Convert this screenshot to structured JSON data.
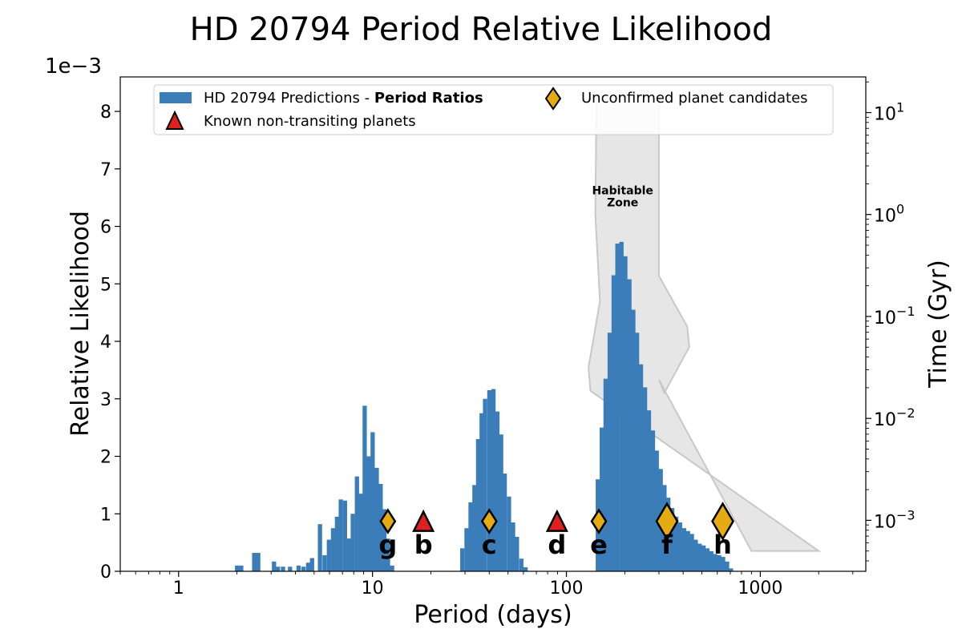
{
  "chart_data": {
    "type": "bar",
    "title": "HD 20794 Period Relative Likelihood",
    "xlabel": "Period (days)",
    "ylabel": "Relative Likelihood",
    "y_scale_label": "1e−3",
    "y2label": "Time (Gyr)",
    "xscale": "log",
    "xlim": [
      0.5,
      3500
    ],
    "ylim": [
      0,
      8.6
    ],
    "y2lim_log10": [
      -3.5,
      1.35
    ],
    "x_ticks": [
      {
        "value": 1,
        "label": "1"
      },
      {
        "value": 10,
        "label": "10"
      },
      {
        "value": 100,
        "label": "100"
      },
      {
        "value": 1000,
        "label": "1000"
      }
    ],
    "y_ticks": [
      {
        "value": 0,
        "label": "0"
      },
      {
        "value": 1,
        "label": "1"
      },
      {
        "value": 2,
        "label": "2"
      },
      {
        "value": 3,
        "label": "3"
      },
      {
        "value": 4,
        "label": "4"
      },
      {
        "value": 5,
        "label": "5"
      },
      {
        "value": 6,
        "label": "6"
      },
      {
        "value": 7,
        "label": "7"
      },
      {
        "value": 8,
        "label": "8"
      }
    ],
    "y2_ticks": [
      {
        "value": 1,
        "base": "10",
        "exp": "1"
      },
      {
        "value": 0,
        "base": "10",
        "exp": "0"
      },
      {
        "value": -1,
        "base": "10",
        "exp": "−1"
      },
      {
        "value": -2,
        "base": "10",
        "exp": "−2"
      },
      {
        "value": -3,
        "base": "10",
        "exp": "−3"
      }
    ],
    "histogram": {
      "name": "HD 20794 Predictions - Period Ratios",
      "color": "#3a7db8",
      "log_bin_width": 0.0207,
      "bins": [
        [
          2.0,
          0.1
        ],
        [
          2.1,
          0.1
        ],
        [
          2.45,
          0.32
        ],
        [
          2.57,
          0.32
        ],
        [
          3.1,
          0.17
        ],
        [
          3.25,
          0.08
        ],
        [
          3.45,
          0.08
        ],
        [
          3.75,
          0.08
        ],
        [
          4.15,
          0.1
        ],
        [
          4.4,
          0.08
        ],
        [
          4.65,
          0.15
        ],
        [
          4.87,
          0.23
        ],
        [
          5.35,
          0.82
        ],
        [
          5.65,
          0.28
        ],
        [
          5.95,
          0.55
        ],
        [
          6.25,
          0.75
        ],
        [
          6.55,
          0.95
        ],
        [
          6.85,
          1.25
        ],
        [
          7.2,
          1.23
        ],
        [
          7.55,
          0.57
        ],
        [
          7.9,
          1.0
        ],
        [
          8.3,
          1.65
        ],
        [
          8.7,
          1.35
        ],
        [
          9.1,
          2.88
        ],
        [
          9.55,
          2.0
        ],
        [
          10.0,
          2.42
        ],
        [
          10.5,
          1.8
        ],
        [
          11.0,
          1.52
        ],
        [
          11.5,
          1.08
        ],
        [
          12.0,
          0.57
        ],
        [
          12.6,
          0.1
        ],
        [
          29.0,
          0.4
        ],
        [
          30.5,
          0.75
        ],
        [
          32.0,
          1.2
        ],
        [
          33.5,
          1.5
        ],
        [
          35.0,
          2.3
        ],
        [
          36.5,
          2.75
        ],
        [
          38.0,
          3.0
        ],
        [
          40.0,
          3.15
        ],
        [
          42.0,
          3.17
        ],
        [
          44.0,
          2.78
        ],
        [
          46.0,
          2.38
        ],
        [
          48.0,
          1.7
        ],
        [
          50.5,
          1.3
        ],
        [
          53.0,
          0.85
        ],
        [
          55.5,
          0.6
        ],
        [
          58.5,
          0.22
        ],
        [
          61.5,
          0.07
        ],
        [
          145,
          1.6
        ],
        [
          152,
          2.5
        ],
        [
          159,
          3.35
        ],
        [
          167,
          4.15
        ],
        [
          175,
          5.15
        ],
        [
          183,
          5.7
        ],
        [
          192,
          5.73
        ],
        [
          201,
          5.48
        ],
        [
          211,
          5.08
        ],
        [
          221,
          4.55
        ],
        [
          231,
          4.15
        ],
        [
          242,
          3.6
        ],
        [
          254,
          3.2
        ],
        [
          266,
          2.8
        ],
        [
          279,
          2.45
        ],
        [
          292,
          2.1
        ],
        [
          306,
          1.78
        ],
        [
          320,
          1.5
        ],
        [
          335,
          1.28
        ],
        [
          351,
          1.1
        ],
        [
          368,
          0.95
        ],
        [
          385,
          0.85
        ],
        [
          404,
          0.75
        ],
        [
          423,
          0.7
        ],
        [
          443,
          0.65
        ],
        [
          464,
          0.55
        ],
        [
          486,
          0.48
        ],
        [
          509,
          0.45
        ],
        [
          533,
          0.4
        ],
        [
          558,
          0.35
        ],
        [
          585,
          0.3
        ],
        [
          613,
          0.28
        ],
        [
          642,
          0.25
        ],
        [
          673,
          0.17
        ],
        [
          705,
          0.05
        ]
      ]
    },
    "habitable_zone": {
      "label_line1": "Habitable",
      "label_line2": "Zone",
      "color": "#e6e6e6",
      "edge_color": "#c8c8c8",
      "left_edge": [
        [
          143,
          1.16
        ],
        [
          141,
          0.0
        ],
        [
          149,
          -0.85
        ],
        [
          130,
          -1.5
        ],
        [
          133,
          -1.73
        ]
      ],
      "right_edge": [
        [
          2000,
          -3.3
        ],
        [
          900,
          -3.3
        ],
        [
          300,
          -1.62
        ],
        [
          320,
          -1.75
        ],
        [
          430,
          -1.3
        ],
        [
          420,
          -1.1
        ],
        [
          300,
          -0.6
        ],
        [
          300,
          1.16
        ]
      ]
    },
    "planets": [
      {
        "name": "g",
        "period": 12.0,
        "type": "candidate",
        "size": "small"
      },
      {
        "name": "b",
        "period": 18.3,
        "type": "known",
        "size": "small"
      },
      {
        "name": "c",
        "period": 40.0,
        "type": "candidate",
        "size": "small"
      },
      {
        "name": "d",
        "period": 89.5,
        "type": "known",
        "size": "small"
      },
      {
        "name": "e",
        "period": 147.0,
        "type": "candidate",
        "size": "small"
      },
      {
        "name": "f",
        "period": 330.0,
        "type": "candidate",
        "size": "large"
      },
      {
        "name": "h",
        "period": 640.0,
        "type": "candidate",
        "size": "large"
      }
    ],
    "marker_y": 0.87,
    "legend": {
      "position": "top",
      "entries": [
        {
          "key": "histogram",
          "prefix": "HD 20794 Predictions - ",
          "bold": "Period Ratios"
        },
        {
          "key": "known",
          "text": "Known non-transiting planets"
        },
        {
          "key": "candidate",
          "text": "Unconfirmed planet candidates"
        }
      ]
    },
    "colors": {
      "candidate_fill": "#e5ac12",
      "known_fill": "#e02020",
      "marker_edge": "#000000"
    }
  }
}
